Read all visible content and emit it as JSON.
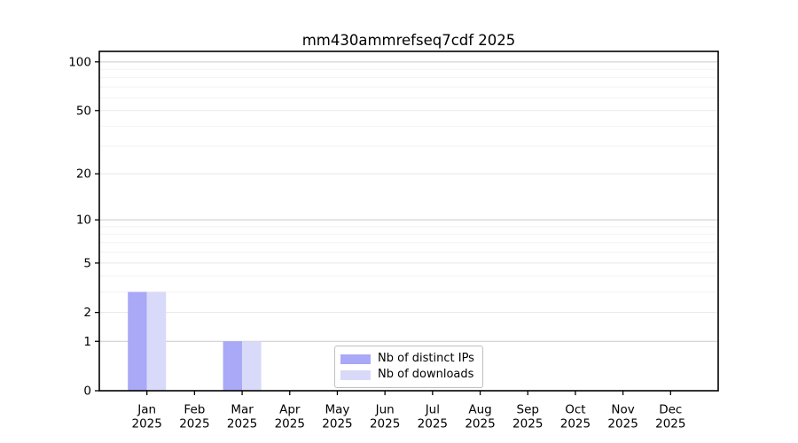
{
  "figure": {
    "title": "mm430ammrefseq7cdf 2025"
  },
  "chart_data": {
    "type": "bar",
    "title": "mm430ammrefseq7cdf 2025",
    "categories": [
      "Jan 2025",
      "Feb 2025",
      "Mar 2025",
      "Apr 2025",
      "May 2025",
      "Jun 2025",
      "Jul 2025",
      "Aug 2025",
      "Sep 2025",
      "Oct 2025",
      "Nov 2025",
      "Dec 2025"
    ],
    "series": [
      {
        "name": "Nb of distinct IPs",
        "color": "#a9a9f7",
        "values": [
          3,
          0,
          1,
          0,
          0,
          0,
          0,
          0,
          0,
          0,
          0,
          0
        ]
      },
      {
        "name": "Nb of downloads",
        "color": "#d9d9fa",
        "values": [
          3,
          0,
          1,
          0,
          0,
          0,
          0,
          0,
          0,
          0,
          0,
          0
        ]
      }
    ],
    "xlabel": "",
    "ylabel": "",
    "yscale": "log1p",
    "ylim": [
      0,
      116
    ],
    "yticks": [
      0,
      1,
      2,
      5,
      10,
      20,
      50,
      100
    ],
    "ytick_labels": [
      "0",
      "1",
      "2",
      "5",
      "10",
      "20",
      "50",
      "100"
    ],
    "decade_gridline_values": [
      1,
      10,
      100
    ],
    "labeled_gridline_values": [
      2,
      5,
      20,
      50
    ],
    "minor_gridline_values": [
      3,
      4,
      6,
      7,
      8,
      9,
      30,
      40,
      60,
      70,
      80,
      90
    ],
    "grid": "horizontal",
    "legend": {
      "position": "inside-bottom-center",
      "entries": [
        "Nb of distinct IPs",
        "Nb of downloads"
      ]
    },
    "colors": {
      "grid_decade": "#c9c9c9",
      "grid_labeled": "#e7e7e7",
      "grid_minor": "#f2f2f2",
      "axis": "#000000",
      "text": "#000000",
      "background": "#ffffff"
    }
  }
}
